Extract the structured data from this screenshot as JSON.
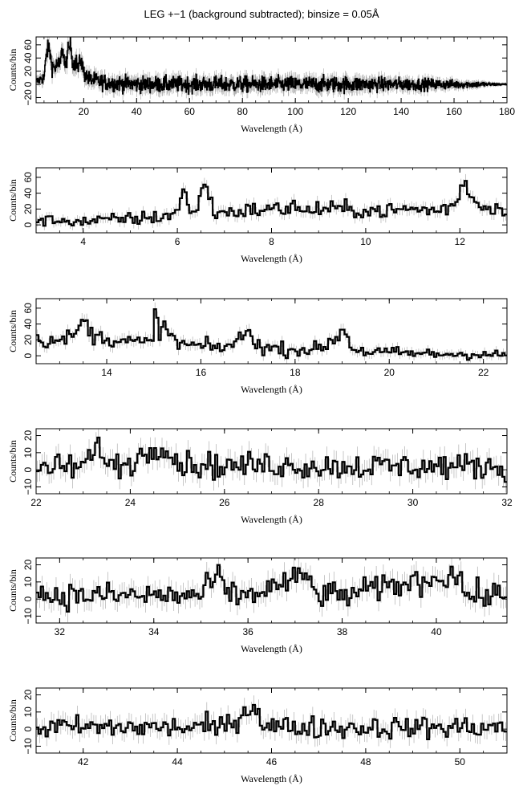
{
  "page": {
    "title": "LEG +−1 (background subtracted); binsize = 0.05Å"
  },
  "colors": {
    "trace": "#000000",
    "errorbar": "#b0b0b0",
    "frame": "#000000"
  },
  "chart_data": [
    {
      "type": "line",
      "style": "step",
      "xlabel": "Wavelength (Å)",
      "ylabel": "Counts/bin",
      "xlim": [
        2,
        180
      ],
      "ylim": [
        -28,
        72
      ],
      "xticks": [
        20,
        40,
        60,
        80,
        100,
        120,
        140,
        160,
        180
      ],
      "yticks": [
        -20,
        0,
        20,
        40,
        60
      ],
      "ytick_labels": [
        "−20",
        "0",
        "20",
        "40",
        "60"
      ],
      "grid": false,
      "bin_width": 0.05,
      "series": [
        {
          "x": [
            3,
            4,
            5,
            6,
            7,
            8,
            9,
            10,
            11,
            12,
            13,
            14,
            15,
            16,
            17,
            18,
            19,
            20,
            22,
            25,
            30,
            40,
            50,
            60,
            70,
            80,
            90,
            100,
            110,
            120,
            130,
            140,
            150,
            160,
            170,
            175,
            180
          ],
          "y": [
            5,
            10,
            8,
            50,
            55,
            28,
            25,
            30,
            28,
            58,
            25,
            48,
            62,
            30,
            35,
            25,
            38,
            18,
            8,
            5,
            2,
            0,
            0,
            0,
            0,
            0,
            0,
            0,
            0,
            0,
            0,
            0,
            0,
            0,
            0,
            0,
            0
          ],
          "noise": [
            6,
            8,
            10,
            12,
            12,
            12,
            12,
            12,
            12,
            12,
            12,
            12,
            12,
            12,
            12,
            12,
            12,
            11,
            11,
            11,
            11,
            11,
            11,
            11,
            11,
            11,
            11,
            11,
            11,
            11,
            10,
            9,
            8,
            6,
            4,
            2,
            1
          ]
        }
      ]
    },
    {
      "type": "line",
      "style": "step",
      "xlabel": "Wavelength (Å)",
      "ylabel": "Counts/bin",
      "xlim": [
        3,
        13
      ],
      "ylim": [
        -10,
        72
      ],
      "xticks": [
        4,
        6,
        8,
        10,
        12
      ],
      "yticks": [
        0,
        20,
        40,
        60
      ],
      "ytick_labels": [
        "0",
        "20",
        "40",
        "60"
      ],
      "grid": false,
      "bin_width": 0.05,
      "series": [
        {
          "x": [
            3.0,
            3.5,
            4.0,
            4.5,
            5.0,
            5.5,
            5.8,
            6.0,
            6.15,
            6.2,
            6.3,
            6.4,
            6.55,
            6.6,
            6.7,
            6.8,
            7.0,
            7.5,
            8.0,
            8.4,
            8.45,
            8.55,
            9.0,
            9.5,
            10.0,
            10.5,
            11.0,
            11.5,
            11.9,
            12.1,
            12.2,
            12.4,
            12.8,
            13.0
          ],
          "y": [
            5,
            6,
            4,
            6,
            8,
            9,
            12,
            18,
            48,
            30,
            8,
            20,
            55,
            48,
            30,
            15,
            16,
            18,
            20,
            20,
            38,
            16,
            20,
            20,
            18,
            18,
            20,
            18,
            24,
            60,
            40,
            24,
            22,
            18
          ],
          "noise": [
            6,
            6,
            7,
            7,
            8,
            8,
            8,
            9,
            10,
            10,
            9,
            9,
            10,
            10,
            10,
            9,
            9,
            9,
            9,
            9,
            10,
            9,
            9,
            9,
            9,
            9,
            9,
            9,
            9,
            10,
            10,
            9,
            9,
            9
          ]
        }
      ]
    },
    {
      "type": "line",
      "style": "step",
      "xlabel": "Wavelength (Å)",
      "ylabel": "Counts/bin",
      "xlim": [
        12.5,
        22.5
      ],
      "ylim": [
        -10,
        72
      ],
      "xticks": [
        14,
        16,
        18,
        20,
        22
      ],
      "yticks": [
        0,
        20,
        40,
        60
      ],
      "ytick_labels": [
        "0",
        "20",
        "40",
        "60"
      ],
      "grid": false,
      "bin_width": 0.05,
      "series": [
        {
          "x": [
            12.5,
            13.0,
            13.4,
            13.5,
            13.7,
            14.0,
            14.5,
            15.0,
            15.02,
            15.1,
            15.25,
            15.5,
            16.0,
            16.5,
            16.8,
            17.05,
            17.1,
            17.3,
            17.8,
            18.5,
            18.95,
            19.0,
            19.2,
            19.5,
            20.0,
            20.5,
            21.0,
            21.5,
            22.0,
            22.5
          ],
          "y": [
            20,
            18,
            30,
            48,
            25,
            22,
            18,
            15,
            63,
            32,
            35,
            15,
            12,
            10,
            20,
            32,
            22,
            10,
            8,
            8,
            25,
            40,
            10,
            5,
            4,
            3,
            2,
            2,
            2,
            0
          ],
          "noise": [
            8,
            8,
            9,
            10,
            9,
            9,
            9,
            9,
            10,
            9,
            9,
            9,
            8,
            8,
            8,
            9,
            8,
            8,
            8,
            8,
            8,
            9,
            8,
            7,
            7,
            6,
            6,
            6,
            6,
            6
          ]
        }
      ]
    },
    {
      "type": "line",
      "style": "step",
      "xlabel": "Wavelength (Å)",
      "ylabel": "Counts/bin",
      "xlim": [
        22,
        32
      ],
      "ylim": [
        -14,
        24
      ],
      "xticks": [
        22,
        24,
        26,
        28,
        30,
        32
      ],
      "yticks": [
        -10,
        0,
        10,
        20
      ],
      "ytick_labels": [
        "−10",
        "0",
        "10",
        "20"
      ],
      "grid": false,
      "bin_width": 0.05,
      "series": [
        {
          "x": [
            22.0,
            23.0,
            23.4,
            23.5,
            24.0,
            24.7,
            24.8,
            25.0,
            26.0,
            27.0,
            28.0,
            29.0,
            30.0,
            31.0,
            32.0
          ],
          "y": [
            1,
            2,
            15,
            2,
            4,
            16,
            12,
            4,
            2,
            3,
            2,
            2,
            2,
            2,
            2
          ],
          "noise": [
            7,
            7,
            7,
            7,
            7,
            7,
            7,
            7,
            7,
            7,
            7,
            7,
            7,
            7,
            7
          ]
        }
      ]
    },
    {
      "type": "line",
      "style": "step",
      "xlabel": "Wavelength (Å)",
      "ylabel": "Counts/bin",
      "xlim": [
        31.5,
        41.5
      ],
      "ylim": [
        -14,
        24
      ],
      "xticks": [
        32,
        34,
        36,
        38,
        40
      ],
      "yticks": [
        -10,
        0,
        10,
        20
      ],
      "ytick_labels": [
        "−10",
        "0",
        "10",
        "20"
      ],
      "grid": false,
      "bin_width": 0.05,
      "series": [
        {
          "x": [
            31.5,
            33.0,
            35.0,
            35.4,
            35.5,
            36.0,
            37.3,
            37.4,
            38.0,
            40.5,
            40.6,
            41.5
          ],
          "y": [
            2,
            2,
            2,
            15,
            3,
            2,
            14,
            3,
            2,
            15,
            2,
            2
          ],
          "noise": [
            7,
            7,
            7,
            7,
            7,
            7,
            7,
            7,
            7,
            7,
            7,
            7
          ]
        }
      ]
    },
    {
      "type": "line",
      "style": "step",
      "xlabel": "Wavelength (Å)",
      "ylabel": "Counts/bin",
      "xlim": [
        41,
        51
      ],
      "ylim": [
        -14,
        24
      ],
      "xticks": [
        42,
        44,
        46,
        48,
        50
      ],
      "yticks": [
        -10,
        0,
        10,
        20
      ],
      "ytick_labels": [
        "−10",
        "0",
        "10",
        "20"
      ],
      "grid": false,
      "bin_width": 0.05,
      "series": [
        {
          "x": [
            41.0,
            43.0,
            45.0,
            45.7,
            45.8,
            46.5,
            48.0,
            50.5,
            51.0
          ],
          "y": [
            1,
            1,
            1,
            15,
            2,
            1,
            1,
            1,
            1
          ],
          "noise": [
            6,
            6,
            6,
            6,
            6,
            6,
            6,
            6,
            6
          ]
        }
      ]
    }
  ]
}
